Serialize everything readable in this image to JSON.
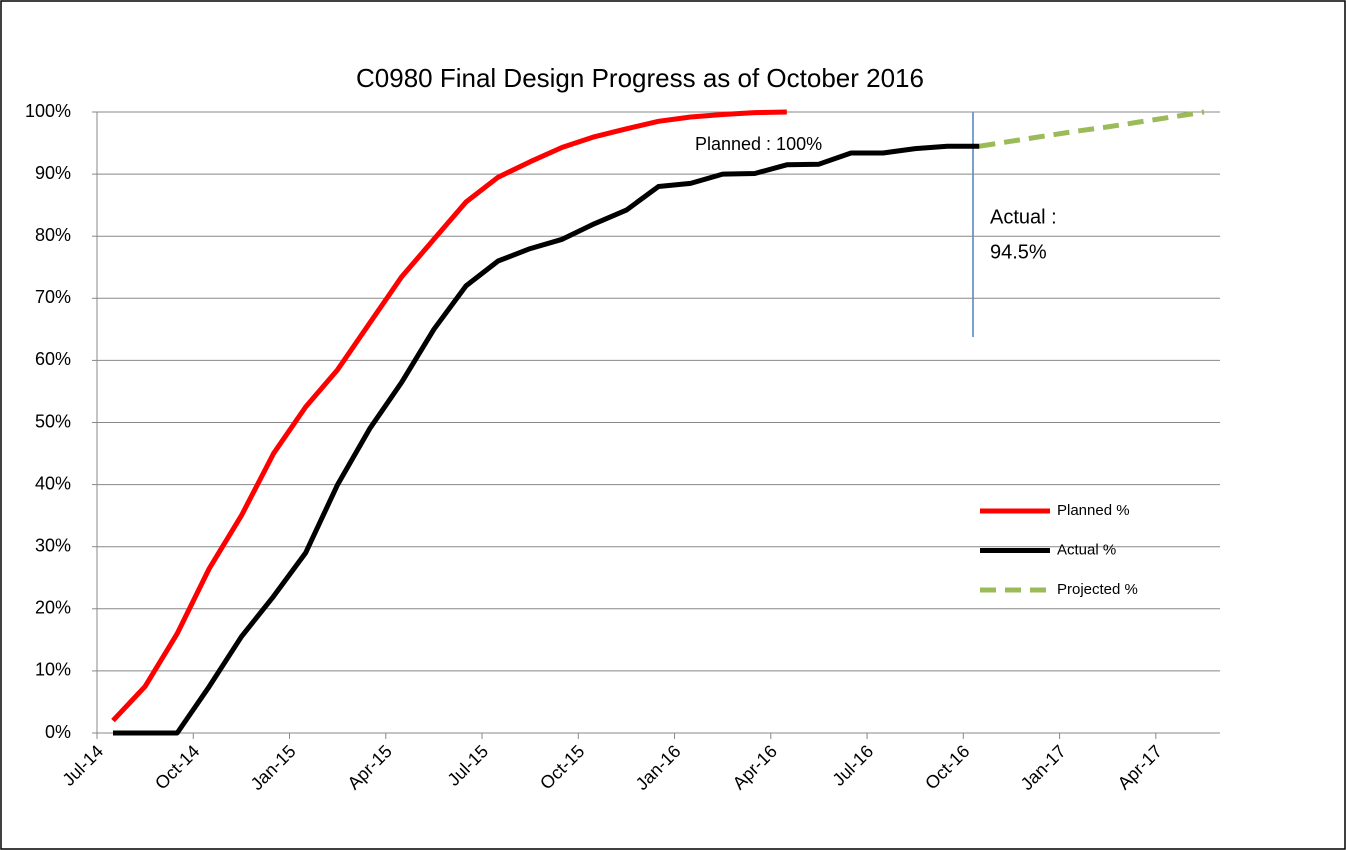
{
  "chart_data": {
    "type": "line",
    "title": "C0980 Final Design Progress as of October 2016",
    "categories": [
      "Jul-14",
      null,
      null,
      "Oct-14",
      null,
      null,
      "Jan-15",
      null,
      null,
      "Apr-15",
      null,
      null,
      "Jul-15",
      null,
      null,
      "Oct-15",
      null,
      null,
      "Jan-16",
      null,
      null,
      "Apr-16",
      null,
      null,
      "Jul-16",
      null,
      null,
      "Oct-16",
      null,
      null,
      "Jan-17",
      null,
      null,
      "Apr-17",
      null
    ],
    "series": [
      {
        "name": "Planned %",
        "color": "#ff0000",
        "dashed": false,
        "values": [
          2,
          7.5,
          16,
          26.5,
          35,
          45,
          52.5,
          58.5,
          66,
          73.5,
          79.5,
          85.5,
          89.5,
          92,
          94.3,
          96,
          97.3,
          98.5,
          99.2,
          99.6,
          99.9,
          100,
          null,
          null,
          null,
          null,
          null,
          null,
          null,
          null,
          null,
          null,
          null,
          null,
          null
        ]
      },
      {
        "name": "Actual %",
        "color": "#000000",
        "dashed": false,
        "values": [
          0,
          0,
          0,
          7.5,
          15.5,
          22,
          29,
          40,
          49,
          56.5,
          65,
          72,
          76,
          78,
          79.5,
          82,
          84.2,
          88,
          88.5,
          90,
          90.1,
          91.5,
          91.6,
          93.4,
          93.4,
          94.1,
          94.5,
          94.5,
          null,
          null,
          null,
          null,
          null,
          null,
          null
        ]
      },
      {
        "name": "Projected %",
        "color": "#9bbb59",
        "dashed": true,
        "values": [
          null,
          null,
          null,
          null,
          null,
          null,
          null,
          null,
          null,
          null,
          null,
          null,
          null,
          null,
          null,
          null,
          null,
          null,
          null,
          null,
          null,
          null,
          null,
          null,
          null,
          null,
          null,
          94.5,
          95.3,
          96.1,
          96.9,
          97.6,
          98.4,
          99.2,
          100
        ]
      }
    ],
    "annotations": [
      "Planned : 100%",
      "Actual :",
      "94.5%"
    ],
    "ylim": [
      0,
      100
    ],
    "yticks": [
      {
        "value": 0,
        "label": "0%"
      },
      {
        "value": 10,
        "label": "10%"
      },
      {
        "value": 20,
        "label": "20%"
      },
      {
        "value": 30,
        "label": "30%"
      },
      {
        "value": 40,
        "label": "40%"
      },
      {
        "value": 50,
        "label": "50%"
      },
      {
        "value": 60,
        "label": "60%"
      },
      {
        "value": 70,
        "label": "70%"
      },
      {
        "value": 80,
        "label": "80%"
      },
      {
        "value": 90,
        "label": "90%"
      },
      {
        "value": 100,
        "label": "100%"
      }
    ],
    "grid": true,
    "legend": "right"
  }
}
